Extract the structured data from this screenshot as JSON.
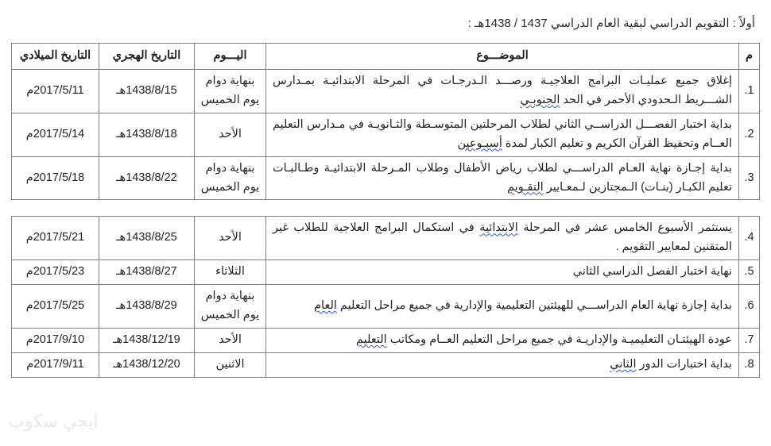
{
  "title": "أولاً : التقويم الدراسي لبقية العام الدراسي  1437 / 1438هـ :",
  "headers": {
    "idx": "م",
    "subject": "الموضـــوع",
    "day": "اليـــوم",
    "hijri": "التاريخ الهجري",
    "greg": "التاريخ الميلادي"
  },
  "table1": [
    {
      "idx": "1.",
      "subject_html": "إغلاق جميع عمليـات البرامج العلاجيـة ورصـــد الـدرجـات في المرحلة الابتدائيـة بمـدارس الشـــريط الـحدودي الأحمر في الحد <span class='spellwave'>الجنوبـي</span>",
      "day": "بنهاية دوام يوم الخميس",
      "hijri": "1438/8/15هـ",
      "greg": "2017/5/11م"
    },
    {
      "idx": "2.",
      "subject_html": "بداية اختبار الفصـــل الدراســي الثاني لطلاب المرحلتين المتوسـطة والثـانويـة في مـدارس التعليم العــام وتحفيظ القرآن الكريم و تعليم الكبار لمدة <span class='spellwave'>أسبـوعين</span>",
      "day": "الأحد",
      "hijri": "1438/8/18هـ",
      "greg": "2017/5/14م"
    },
    {
      "idx": "3.",
      "subject_html": "بداية إجـازة نهاية العـام الدراســـي لطلاب رياض الأطفال وطلاب المـرحلة الابتدائيـة وطـالبـات تعليم الكبـار (بنـات) الـمجتازين لـمعـايير <span class='spellwave'>التقـويم</span>",
      "day": "بنهاية دوام يوم الخميس",
      "hijri": "1438/8/22هـ",
      "greg": "2017/5/18م"
    }
  ],
  "table2": [
    {
      "idx": "4.",
      "subject_html": "يستثمر الأسبوع الخامس عشر في المرحلة <span class='spellwave'>الابتدائية</span> في استكمال البرامج العلاجية للطلاب غير المتقنين لمعايير التقويم .",
      "day": "الأحد",
      "hijri": "1438/8/25هـ",
      "greg": "2017/5/21م"
    },
    {
      "idx": "5.",
      "subject_html": "نهاية اختبار الفصل الدراسي الثاني",
      "day": "الثلاثاء",
      "hijri": "1438/8/27هـ",
      "greg": "2017/5/23م"
    },
    {
      "idx": "6.",
      "subject_html": "بداية إجازة نهاية العام الدراســـي للهيئتين التعليمية والإدارية في جميع مراحل التعليم <span class='spellwave'>العام</span>",
      "day": "بنهاية دوام يوم الخميس",
      "hijri": "1438/8/29هـ",
      "greg": "2017/5/25م"
    },
    {
      "idx": "7.",
      "subject_html": "عودة الهيئتـان التعليميـة والإداريـة في جميع مراحل التعليم العــام ومكاتب <span class='spellwave'>التعليم</span>",
      "day": "الأحد",
      "hijri": "1438/12/19هـ",
      "greg": "2017/9/10م"
    },
    {
      "idx": "8.",
      "subject_html": "بداية اختبارات الدور <span class='spellwave'>الثاني</span>",
      "day": "الاثنين",
      "hijri": "1438/12/20هـ",
      "greg": "2017/9/11م"
    }
  ],
  "watermark": "ايجي سكوب"
}
